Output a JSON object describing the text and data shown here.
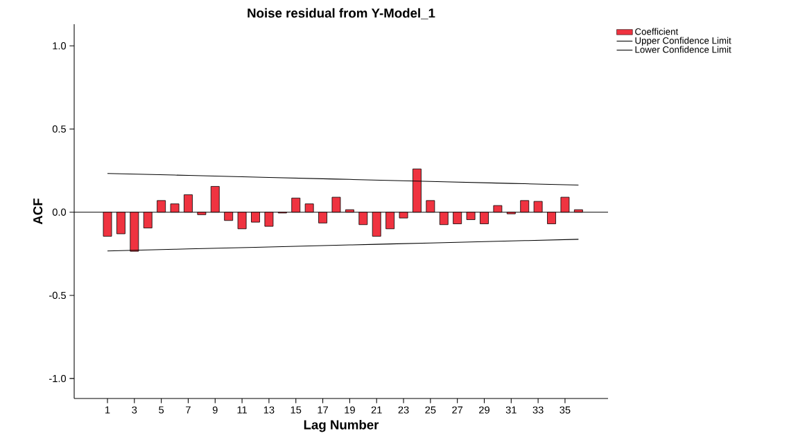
{
  "chart_data": {
    "type": "bar",
    "title": "Noise residual from Y-Model_1",
    "xlabel": "Lag Number",
    "ylabel": "ACF",
    "categories": [
      "1",
      null,
      "3",
      null,
      "5",
      null,
      "7",
      null,
      "9",
      null,
      "11",
      null,
      "13",
      null,
      "15",
      null,
      "17",
      null,
      "19",
      null,
      "21",
      null,
      "23",
      null,
      "25",
      null,
      "27",
      null,
      "29",
      null,
      "31",
      null,
      "33",
      null,
      "35",
      null
    ],
    "series": [
      {
        "name": "Coefficient",
        "color": "#ef3340",
        "values": [
          -0.145,
          -0.13,
          -0.235,
          -0.095,
          0.07,
          0.05,
          0.105,
          -0.015,
          0.155,
          -0.05,
          -0.1,
          -0.06,
          -0.085,
          -0.005,
          0.085,
          0.05,
          -0.065,
          0.09,
          0.015,
          -0.075,
          -0.145,
          -0.1,
          -0.035,
          0.26,
          0.07,
          -0.075,
          -0.07,
          -0.045,
          -0.07,
          0.04,
          -0.01,
          0.07,
          0.065,
          -0.07,
          0.09,
          0.015
        ]
      },
      {
        "name": "Upper Confidence Limit",
        "type": "line",
        "color": "#000000",
        "values": [
          0.233,
          0.231,
          0.229,
          0.227,
          0.225,
          0.223,
          0.221,
          0.219,
          0.217,
          0.215,
          0.213,
          0.211,
          0.209,
          0.207,
          0.205,
          0.203,
          0.201,
          0.199,
          0.197,
          0.195,
          0.193,
          0.191,
          0.189,
          0.187,
          0.185,
          0.183,
          0.181,
          0.179,
          0.177,
          0.175,
          0.173,
          0.171,
          0.169,
          0.167,
          0.165,
          0.163
        ]
      },
      {
        "name": "Lower Confidence Limit",
        "type": "line",
        "color": "#000000",
        "values": [
          -0.233,
          -0.231,
          -0.229,
          -0.227,
          -0.225,
          -0.223,
          -0.221,
          -0.219,
          -0.217,
          -0.215,
          -0.213,
          -0.211,
          -0.209,
          -0.207,
          -0.205,
          -0.203,
          -0.201,
          -0.199,
          -0.197,
          -0.195,
          -0.193,
          -0.191,
          -0.189,
          -0.187,
          -0.185,
          -0.183,
          -0.181,
          -0.179,
          -0.177,
          -0.175,
          -0.173,
          -0.171,
          -0.169,
          -0.167,
          -0.165,
          -0.163
        ]
      }
    ],
    "ylim": [
      -1.12,
      1.13
    ],
    "yticks": [
      {
        "value": -1,
        "label": "-1.0"
      },
      {
        "value": -0.5,
        "label": "-0.5"
      },
      {
        "value": 0,
        "label": "0.0"
      },
      {
        "value": 0.5,
        "label": "0.5"
      },
      {
        "value": 1,
        "label": "1.0"
      }
    ],
    "ref_lines": [
      {
        "axis": "y",
        "value": 0,
        "color": "#000000"
      }
    ],
    "legend": "top right",
    "grid": false
  }
}
